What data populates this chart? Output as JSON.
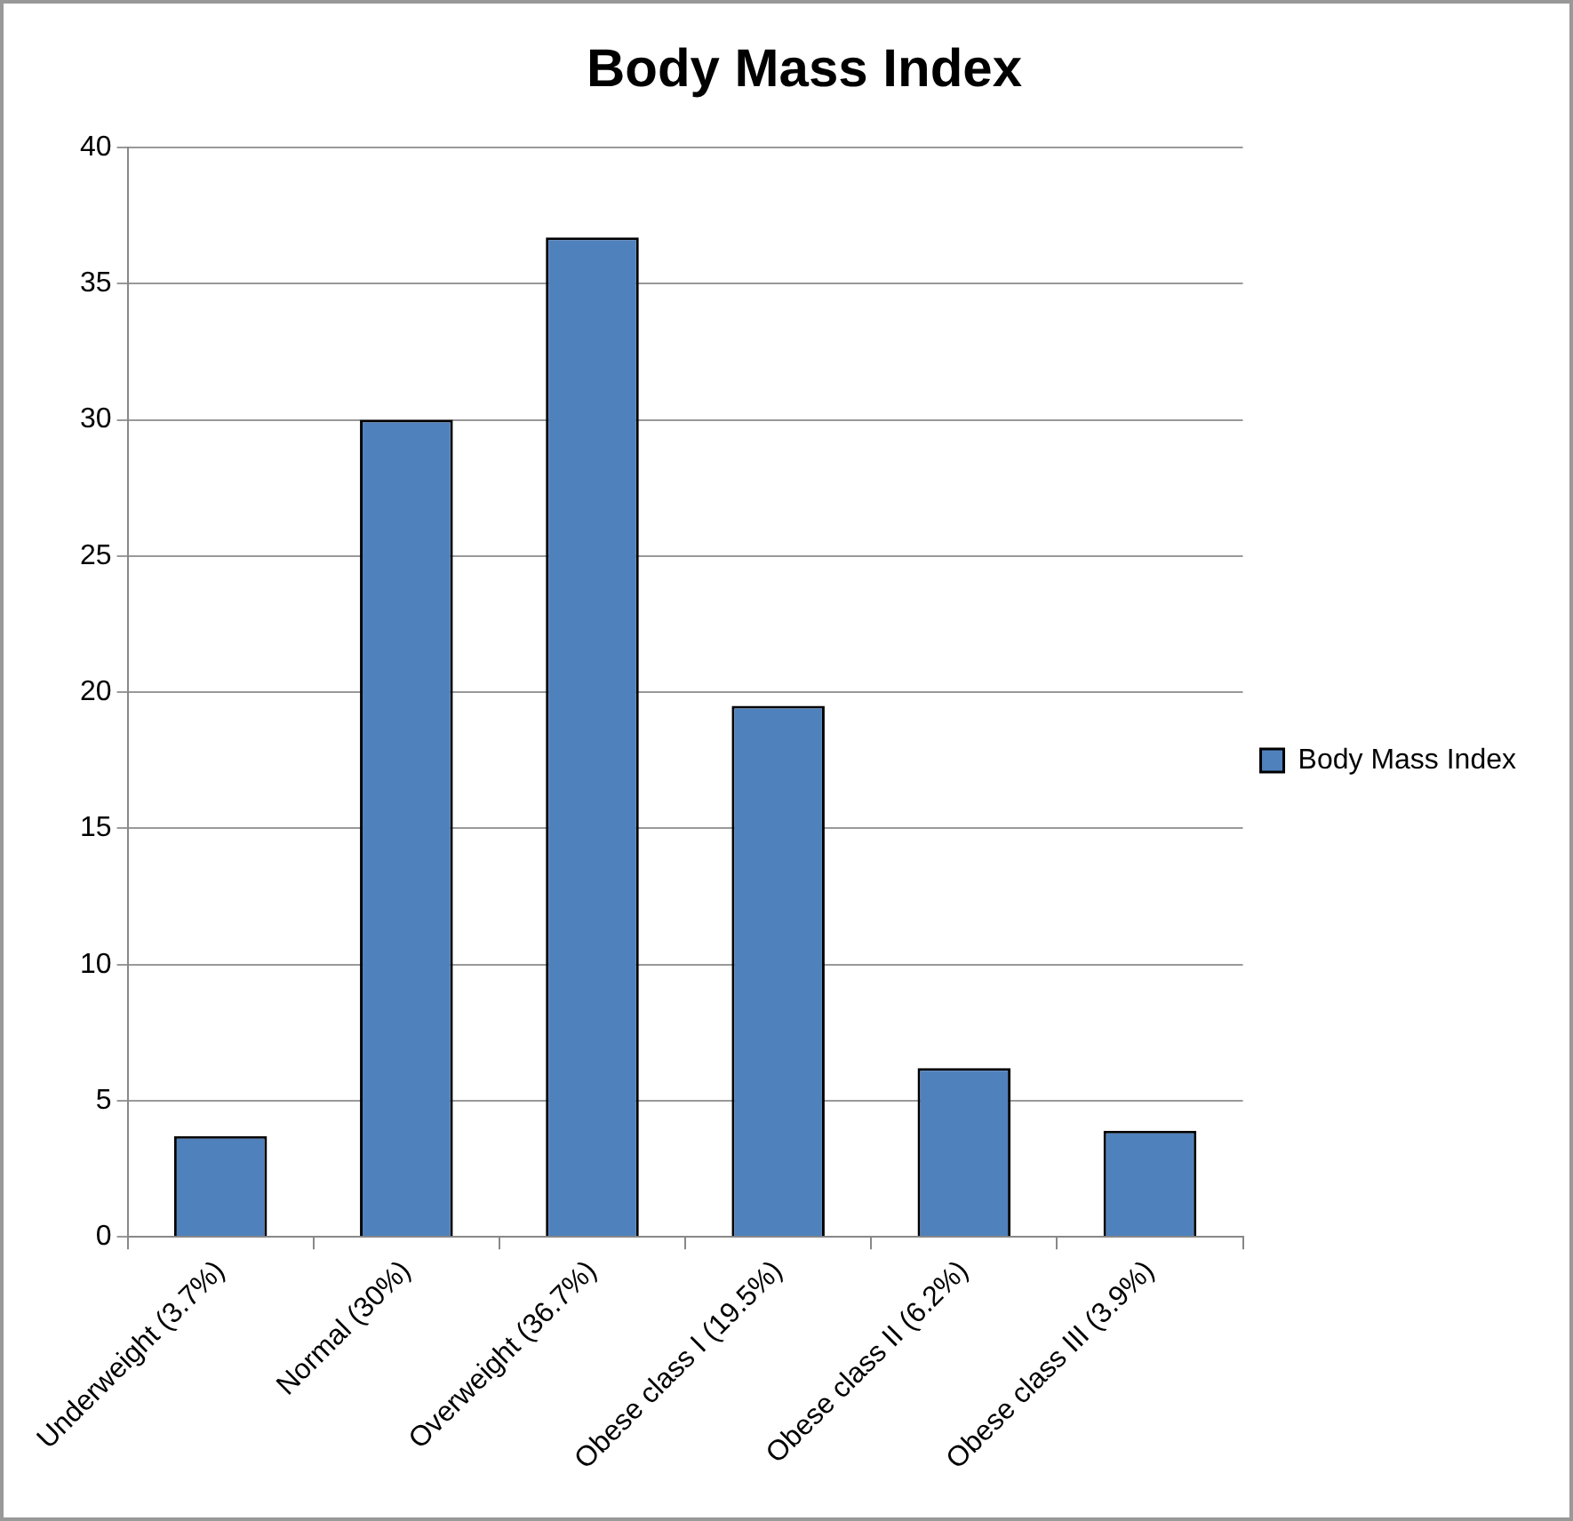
{
  "chart_data": {
    "type": "bar",
    "title": "Body Mass Index",
    "categories": [
      "Underweight (3.7%)",
      "Normal (30%)",
      "Overweight (36.7%)",
      "Obese class I (19.5%)",
      "Obese class II (6.2%)",
      "Obese class III (3.9%)"
    ],
    "series": [
      {
        "name": "Body Mass Index",
        "color": "#4f81bd",
        "values": [
          3.7,
          30,
          36.7,
          19.5,
          6.2,
          3.9
        ]
      }
    ],
    "ylim": [
      0,
      40
    ],
    "yticks": [
      0,
      5,
      10,
      15,
      20,
      25,
      30,
      35,
      40
    ],
    "grid": "y",
    "legend": "right"
  }
}
